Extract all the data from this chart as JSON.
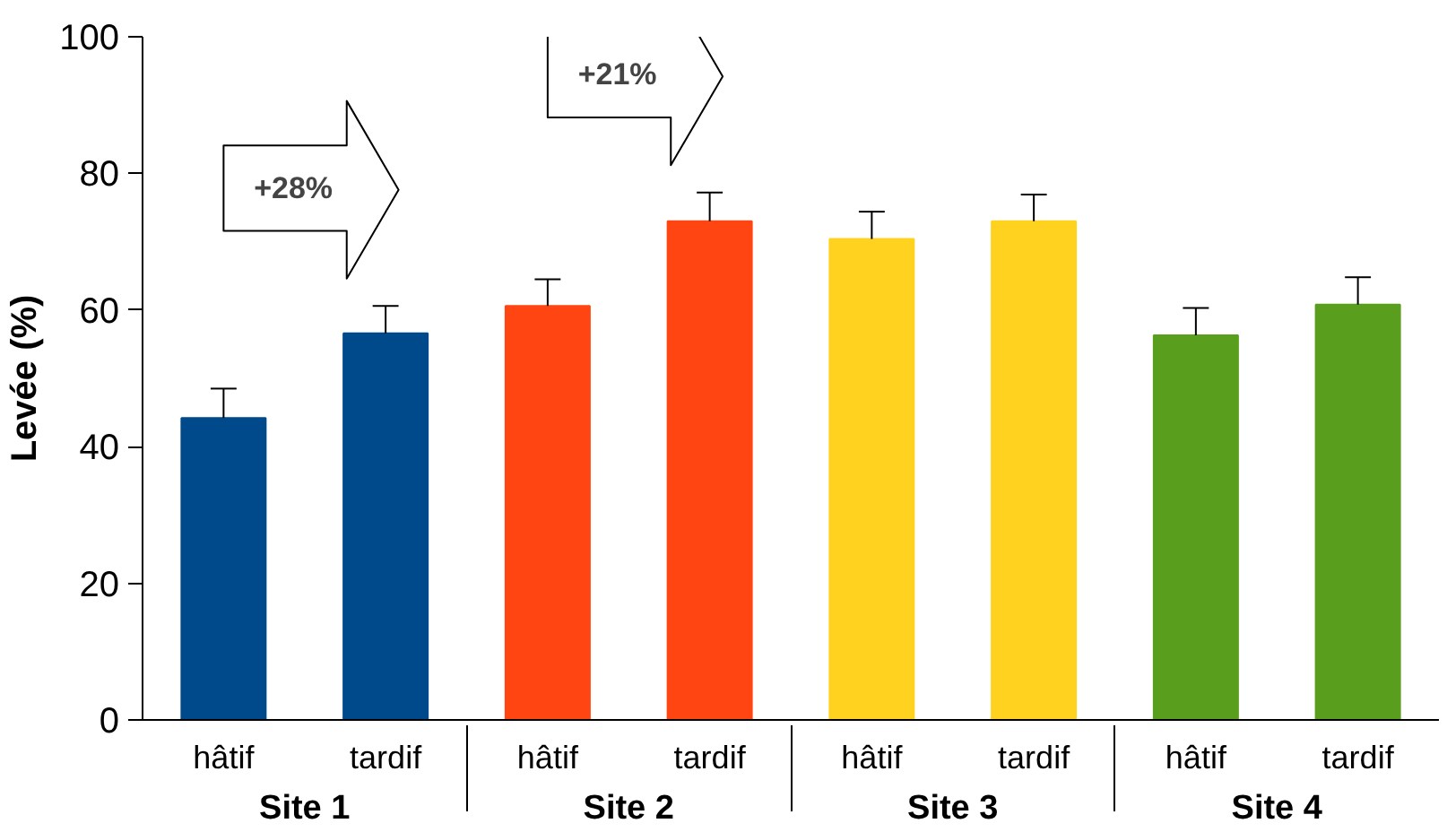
{
  "chart_data": {
    "type": "bar",
    "ylabel": "Levée (%)",
    "categories": [
      "hâtif",
      "tardif",
      "hâtif",
      "tardif",
      "hâtif",
      "tardif",
      "hâtif",
      "tardif"
    ],
    "values": [
      44.2,
      56.6,
      60.6,
      73.0,
      70.4,
      73.0,
      56.3,
      60.8
    ],
    "errors": [
      [
        44.2,
        48.5
      ],
      [
        56.6,
        60.6
      ],
      [
        60.6,
        64.5
      ],
      [
        73.0,
        77.2
      ],
      [
        70.4,
        74.4
      ],
      [
        73.0,
        76.9
      ],
      [
        56.3,
        60.3
      ],
      [
        60.8,
        64.8
      ]
    ],
    "colors": [
      "#004a8b",
      "#004a8b",
      "#ff4612",
      "#ff4612",
      "#ffd21f",
      "#ffd21f",
      "#5a9e1e",
      "#5a9e1e"
    ],
    "ylim": [
      0,
      100
    ],
    "yticks": [
      0,
      20,
      40,
      60,
      80,
      100
    ],
    "grid": false,
    "annotations": [
      "Site 1",
      "Site 2",
      "Site 3",
      "Site 4",
      "+28%",
      "+21%"
    ]
  }
}
